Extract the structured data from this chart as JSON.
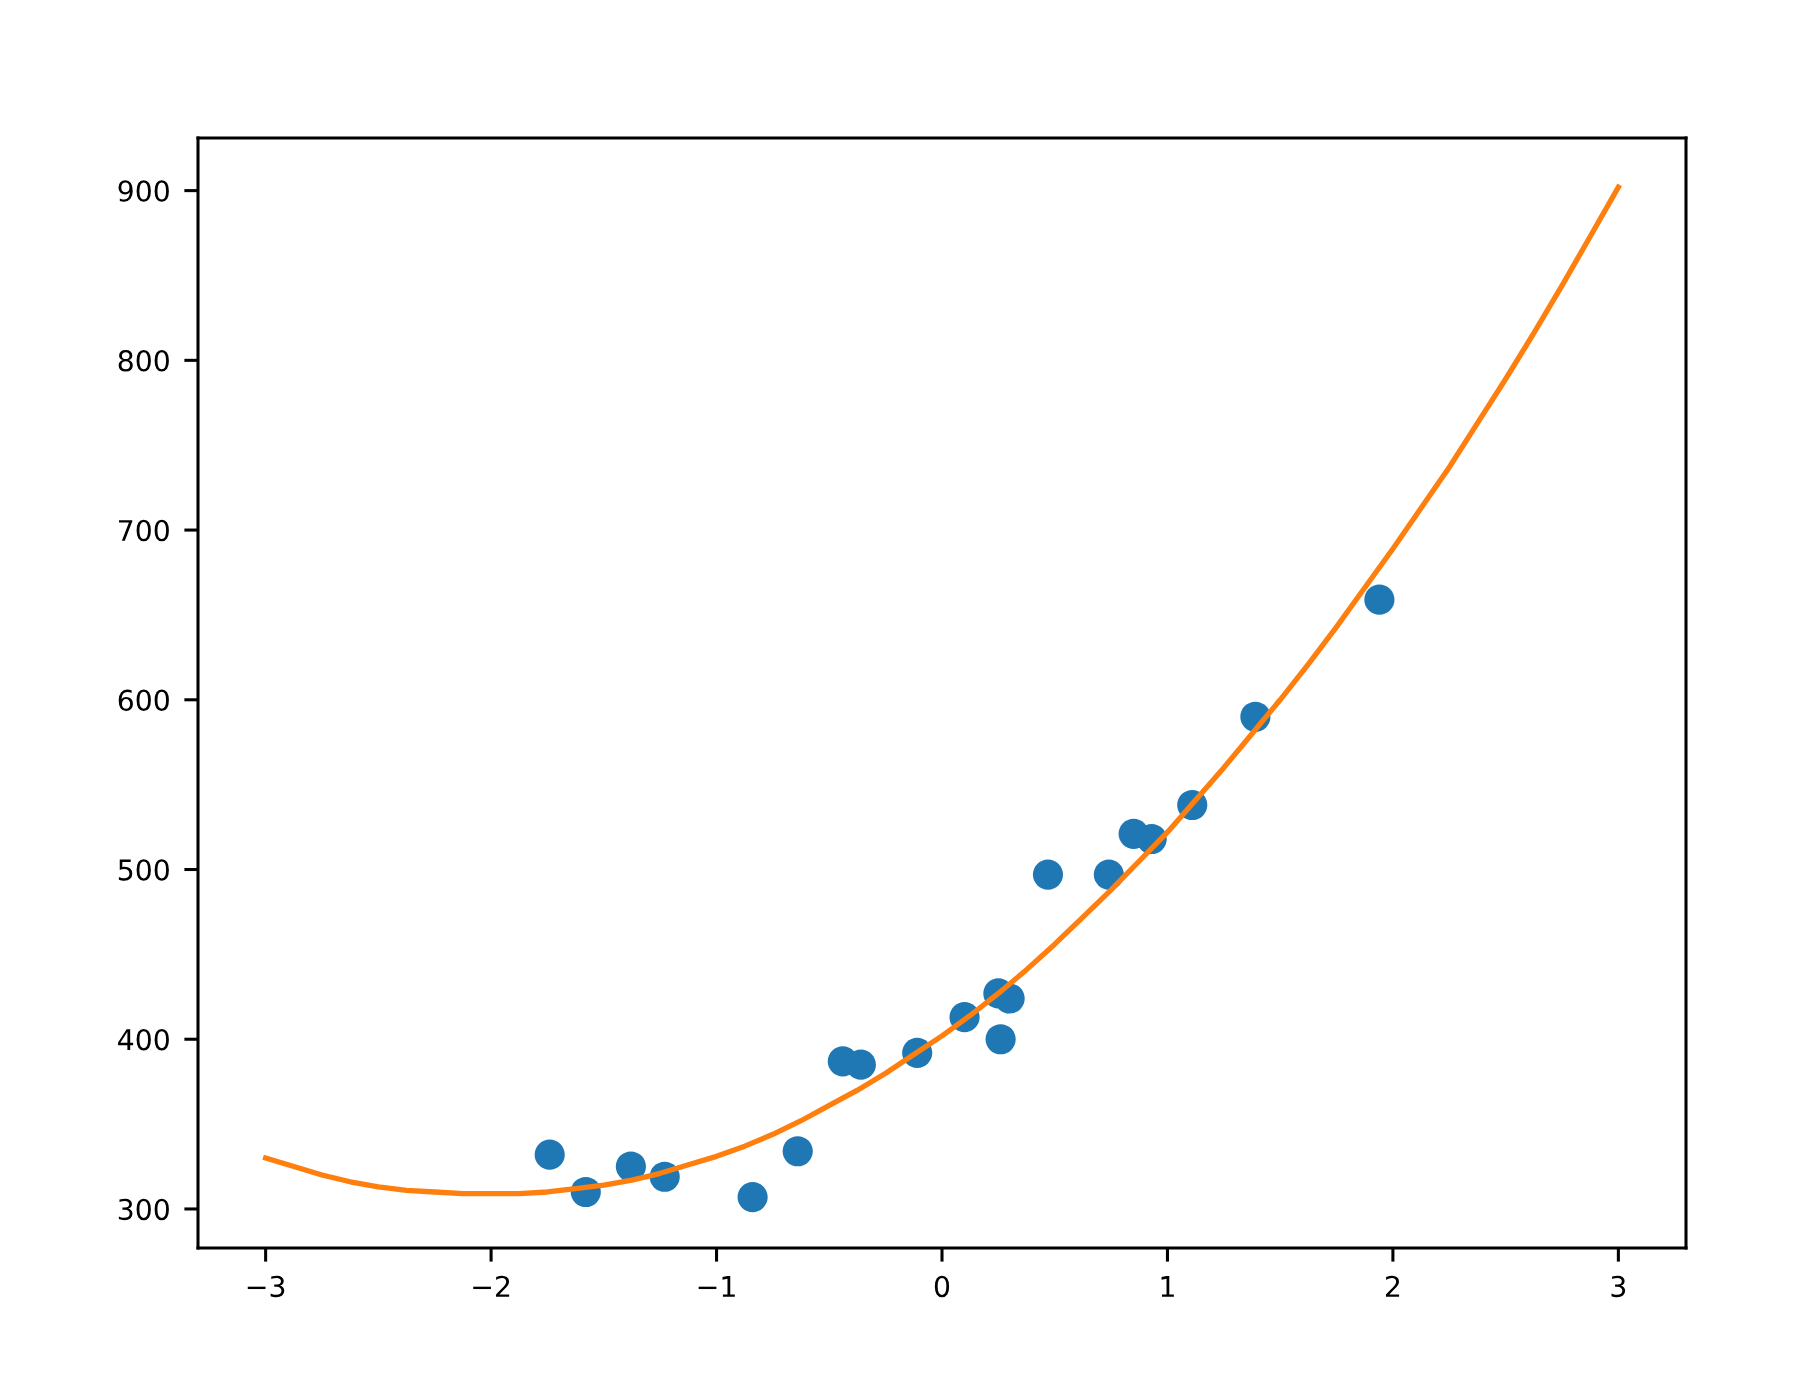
{
  "chart_data": {
    "type": "scatter",
    "series": [
      {
        "color": "#1f77b4",
        "marker": "circle",
        "x": [
          -1.74,
          -1.58,
          -1.38,
          -1.23,
          -0.84,
          -0.64,
          -0.44,
          -0.36,
          -0.11,
          0.1,
          0.25,
          0.3,
          0.26,
          0.47,
          0.74,
          0.85,
          0.93,
          1.11,
          1.39,
          1.94
        ],
        "values": [
          332,
          310,
          325,
          319,
          307,
          334,
          387,
          385,
          392,
          413,
          427,
          424,
          400,
          497,
          497,
          521,
          518,
          538,
          590,
          659
        ]
      },
      {
        "type": "line",
        "color": "#ff7f0e",
        "marker": "none",
        "line_style": "solid",
        "x": [
          -3,
          -2.875,
          -2.75,
          -2.625,
          -2.5,
          -2.375,
          -2.25,
          -2.125,
          -2,
          -1.875,
          -1.75,
          -1.625,
          -1.5,
          -1.375,
          -1.25,
          -1.125,
          -1,
          -0.875,
          -0.75,
          -0.625,
          -0.5,
          -0.375,
          -0.25,
          -0.125,
          0,
          0.125,
          0.25,
          0.375,
          0.5,
          0.625,
          0.75,
          0.875,
          1,
          1.125,
          1.25,
          1.375,
          1.5,
          1.625,
          1.75,
          1.875,
          2,
          2.125,
          2.25,
          2.375,
          2.5,
          2.625,
          2.75,
          2.875,
          3
        ],
        "values": [
          330,
          325,
          320,
          316,
          313,
          311,
          310,
          309,
          309,
          309,
          310,
          312,
          314,
          317,
          321,
          326,
          331,
          337,
          344,
          352,
          361,
          370,
          380,
          391,
          402,
          414,
          427,
          441,
          456,
          472,
          488,
          505,
          522,
          541,
          560,
          580,
          600,
          621,
          643,
          666,
          689,
          713,
          737,
          763,
          789,
          816,
          844,
          873,
          902
        ]
      }
    ],
    "xlim": [
      -3.3,
      3.3
    ],
    "xticks": [
      {
        "value": -3,
        "label": "−3"
      },
      {
        "value": -2,
        "label": "−2"
      },
      {
        "value": -1,
        "label": "−1"
      },
      0,
      1,
      2,
      3
    ],
    "ylim": [
      277,
      931
    ],
    "yticks": [
      300,
      400,
      500,
      600,
      700,
      800,
      900
    ]
  }
}
